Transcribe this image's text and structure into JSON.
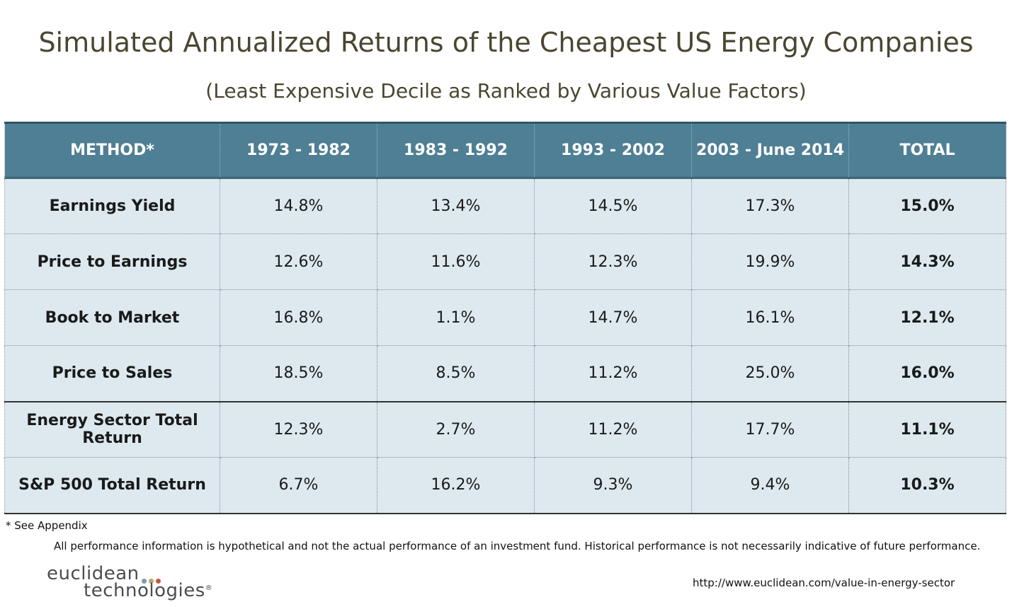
{
  "title": "Simulated Annualized Returns of the Cheapest US Energy Companies",
  "subtitle": "(Least Expensive Decile as Ranked by Various Value Factors)",
  "table": {
    "headers": [
      "METHOD*",
      "1973 - 1982",
      "1983 - 1992",
      "1993 - 2002",
      "2003 - June 2014",
      "TOTAL"
    ],
    "rows": [
      [
        "Earnings Yield",
        "14.8%",
        "13.4%",
        "14.5%",
        "17.3%",
        "15.0%"
      ],
      [
        "Price to Earnings",
        "12.6%",
        "11.6%",
        "12.3%",
        "19.9%",
        "14.3%"
      ],
      [
        "Book to Market",
        "16.8%",
        "1.1%",
        "14.7%",
        "16.1%",
        "12.1%"
      ],
      [
        "Price to Sales",
        "18.5%",
        "8.5%",
        "11.2%",
        "25.0%",
        "16.0%"
      ],
      [
        "Energy Sector Total Return",
        "12.3%",
        "2.7%",
        "11.2%",
        "17.7%",
        "11.1%"
      ],
      [
        "S&P 500 Total Return",
        "6.7%",
        "16.2%",
        "9.3%",
        "9.4%",
        "10.3%"
      ]
    ]
  },
  "footnote": "* See Appendix",
  "disclaimer": "All performance information is hypothetical and not the actual performance of an investment fund. Historical performance is not necessarily indicative of future performance.",
  "logo": {
    "line1": "euclidean",
    "line2": "technologies",
    "registered": "®",
    "dot_colors": [
      "#7a9aa6",
      "#b9a96e",
      "#c2553f"
    ]
  },
  "url": "http://www.euclidean.com/value-in-energy-sector",
  "colors": {
    "header_bg": "#4f7f94",
    "row_bg": "#dde9ef",
    "title_text": "#4a4630"
  }
}
